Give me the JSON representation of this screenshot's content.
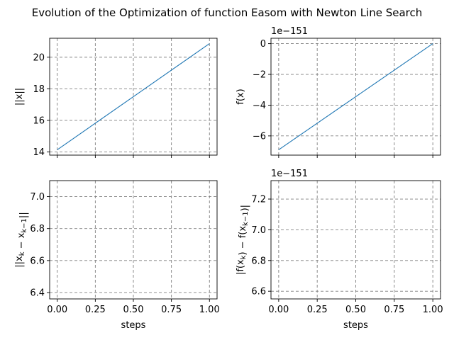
{
  "figure": {
    "title": "Evolution of the Optimization of function Easom with Newton Line Search",
    "line_color": "#1f77b4",
    "grid_color": "#808080"
  },
  "chart_data": [
    {
      "type": "line",
      "ylabel": "||x||",
      "xlabel": "",
      "offset_text": "",
      "x": [
        0,
        1
      ],
      "y": [
        14.14,
        20.86
      ],
      "xlim": [
        -0.05,
        1.05
      ],
      "ylim": [
        13.8,
        21.2
      ],
      "xticks": [
        0,
        0.25,
        0.5,
        0.75,
        1
      ],
      "xtick_labels": [],
      "yticks": [
        14,
        16,
        18,
        20
      ],
      "ytick_labels": [
        "14",
        "16",
        "18",
        "20"
      ],
      "grid": true
    },
    {
      "type": "line",
      "ylabel": "f(x)",
      "xlabel": "",
      "offset_text": "1e−151",
      "x": [
        0,
        1
      ],
      "y": [
        -6.9,
        0
      ],
      "xlim": [
        -0.05,
        1.05
      ],
      "ylim": [
        -7.25,
        0.35
      ],
      "xticks": [
        0,
        0.25,
        0.5,
        0.75,
        1
      ],
      "xtick_labels": [],
      "yticks": [
        -6,
        -4,
        -2,
        0
      ],
      "ytick_labels": [
        "−6",
        "−4",
        "−2",
        "0"
      ],
      "grid": true
    },
    {
      "type": "line",
      "ylabel": "||x_k − x_{k−1}||",
      "xlabel": "steps",
      "offset_text": "",
      "x": [],
      "y": [],
      "xlim": [
        -0.05,
        1.05
      ],
      "ylim": [
        6.36,
        7.1
      ],
      "xticks": [
        0,
        0.25,
        0.5,
        0.75,
        1
      ],
      "xtick_labels": [
        "0.00",
        "0.25",
        "0.50",
        "0.75",
        "1.00"
      ],
      "yticks": [
        6.4,
        6.6,
        6.8,
        7.0
      ],
      "ytick_labels": [
        "6.4",
        "6.6",
        "6.8",
        "7.0"
      ],
      "grid": true
    },
    {
      "type": "line",
      "ylabel": "|f(x_k) − f(x_{k−1})|",
      "xlabel": "steps",
      "offset_text": "1e−151",
      "x": [],
      "y": [],
      "xlim": [
        -0.05,
        1.05
      ],
      "ylim": [
        6.55,
        7.32
      ],
      "xticks": [
        0,
        0.25,
        0.5,
        0.75,
        1
      ],
      "xtick_labels": [
        "0.00",
        "0.25",
        "0.50",
        "0.75",
        "1.00"
      ],
      "yticks": [
        6.6,
        6.8,
        7.0,
        7.2
      ],
      "ytick_labels": [
        "6.6",
        "6.8",
        "7.0",
        "7.2"
      ],
      "grid": true
    }
  ]
}
